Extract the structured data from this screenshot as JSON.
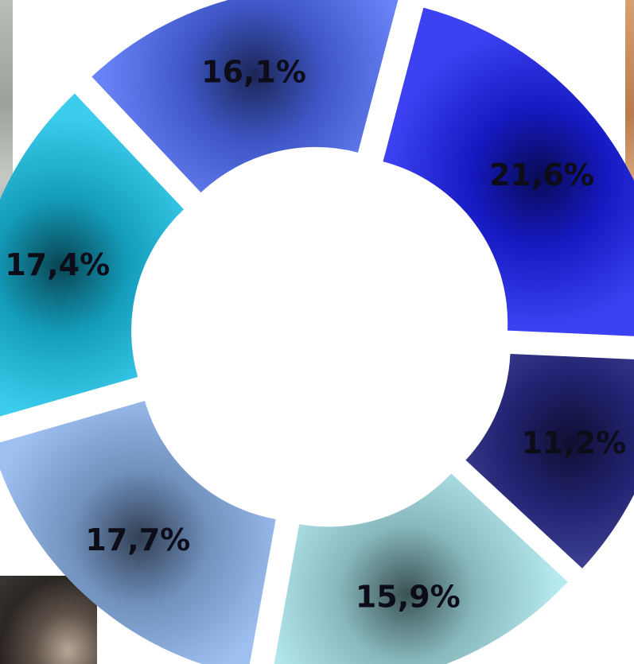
{
  "chart_data": {
    "type": "pie",
    "variant": "exploded-donut",
    "title": "",
    "slices": [
      {
        "label": "17,4%",
        "value": 17.4,
        "color": "#19c4ea"
      },
      {
        "label": "16,1%",
        "value": 16.1,
        "color": "#4d6cf6"
      },
      {
        "label": "21,6%",
        "value": 21.6,
        "color": "#1a1ff0"
      },
      {
        "label": "11,2%",
        "value": 11.2,
        "color": "#2a2c8e"
      },
      {
        "label": "15,9%",
        "value": 15.9,
        "color": "#a9e6ec"
      },
      {
        "label": "17,7%",
        "value": 17.7,
        "color": "#8db5ee"
      }
    ],
    "legend": "none"
  }
}
